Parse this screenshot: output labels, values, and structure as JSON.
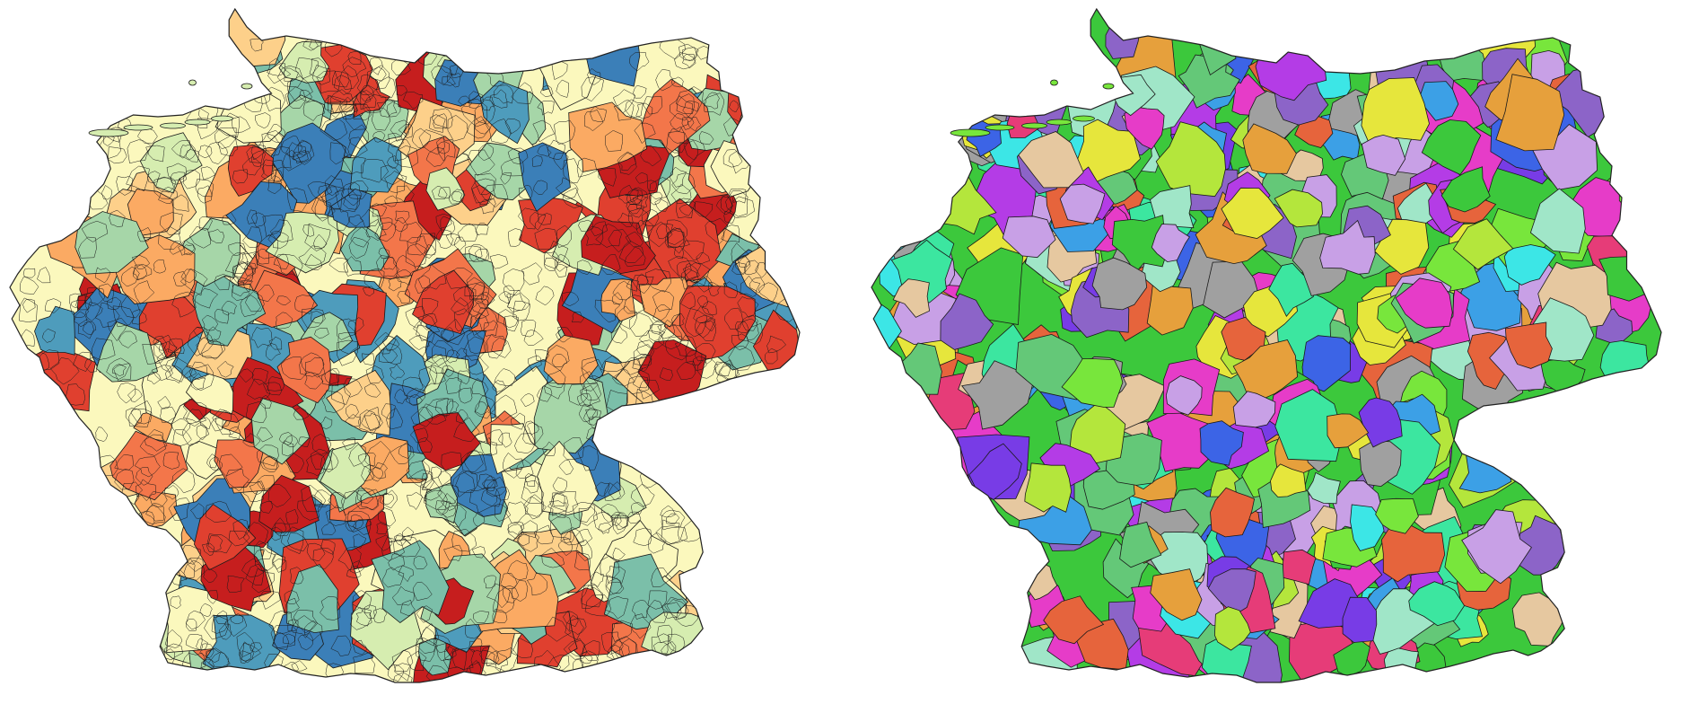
{
  "figure": {
    "panels": [
      {
        "id": "left",
        "description_visible_text": "",
        "palette": [
          "#fbf8bd",
          "#d6edb0",
          "#a6d6a8",
          "#7bbfa9",
          "#4e9cbc",
          "#3b7fb8",
          "#fdd08a",
          "#fbaa63",
          "#f3764a",
          "#e0402f",
          "#c61e1e"
        ],
        "shape_seed": 7
      },
      {
        "id": "right",
        "description_visible_text": "",
        "palette": [
          "#3cc83c",
          "#78e63c",
          "#b4e63c",
          "#e6e63c",
          "#e6a03c",
          "#e6643c",
          "#e63c78",
          "#e63cc8",
          "#b43ce6",
          "#783ce6",
          "#3c64e6",
          "#3ca0e6",
          "#3ce6e6",
          "#3ce6a0",
          "#a0e6c8",
          "#c8a0e6",
          "#e6c8a0",
          "#a0a0a0",
          "#8c64c8",
          "#64c878"
        ],
        "shape_seed": 23
      }
    ]
  }
}
